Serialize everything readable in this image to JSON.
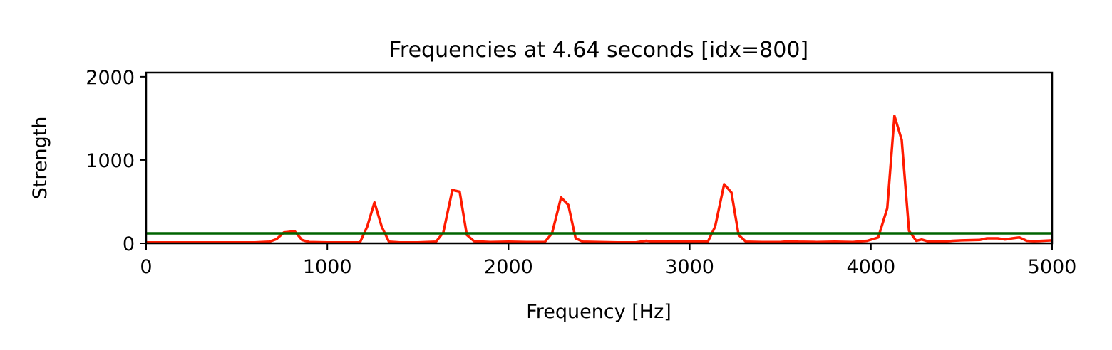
{
  "chart_data": {
    "type": "line",
    "title": "Frequencies at 4.64 seconds [idx=800]",
    "xlabel": "Frequency [Hz]",
    "ylabel": "Strength",
    "xlim": [
      0,
      5000
    ],
    "ylim": [
      0,
      2050
    ],
    "xticks": [
      0,
      1000,
      2000,
      3000,
      4000,
      5000
    ],
    "yticks": [
      0,
      1000,
      2000
    ],
    "xtick_labels": [
      "0",
      "1000",
      "2000",
      "3000",
      "4000",
      "5000"
    ],
    "ytick_labels": [
      "0",
      "1000",
      "2000"
    ],
    "grid": false,
    "series": [
      {
        "color": "#ff1a00",
        "x": [
          0,
          100,
          200,
          300,
          400,
          500,
          600,
          680,
          720,
          760,
          780,
          820,
          860,
          900,
          1000,
          1100,
          1180,
          1220,
          1260,
          1300,
          1340,
          1400,
          1500,
          1600,
          1640,
          1690,
          1730,
          1770,
          1810,
          1900,
          2000,
          2100,
          2200,
          2240,
          2290,
          2330,
          2370,
          2410,
          2500,
          2600,
          2700,
          2760,
          2800,
          2900,
          3000,
          3100,
          3140,
          3190,
          3230,
          3270,
          3310,
          3400,
          3500,
          3550,
          3600,
          3700,
          3800,
          3900,
          3980,
          4040,
          4090,
          4130,
          4170,
          4210,
          4250,
          4280,
          4320,
          4400,
          4450,
          4500,
          4600,
          4640,
          4700,
          4740,
          4780,
          4820,
          4860,
          4900,
          5000
        ],
        "y": [
          10,
          10,
          10,
          10,
          10,
          10,
          10,
          20,
          50,
          130,
          135,
          145,
          40,
          15,
          10,
          10,
          10,
          200,
          490,
          200,
          20,
          10,
          10,
          20,
          130,
          640,
          620,
          100,
          25,
          15,
          20,
          15,
          15,
          120,
          550,
          460,
          60,
          20,
          15,
          10,
          10,
          30,
          20,
          20,
          25,
          20,
          200,
          710,
          610,
          100,
          20,
          15,
          15,
          25,
          20,
          15,
          20,
          15,
          30,
          70,
          420,
          1530,
          1240,
          150,
          30,
          45,
          20,
          20,
          30,
          35,
          40,
          60,
          60,
          45,
          60,
          70,
          30,
          25,
          35
        ]
      },
      {
        "color": "#006400",
        "x": [
          0,
          5000
        ],
        "y": [
          120,
          120
        ]
      }
    ]
  }
}
